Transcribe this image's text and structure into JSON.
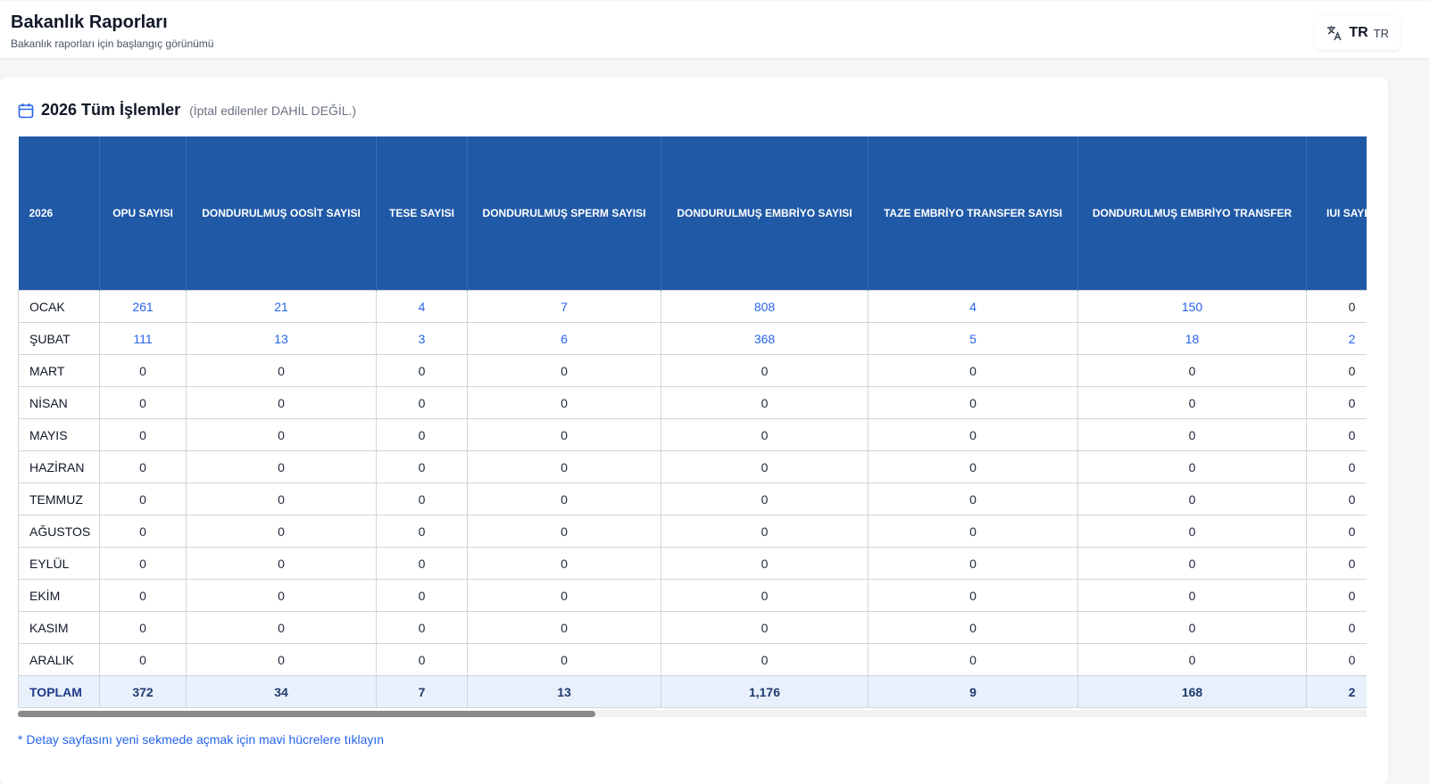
{
  "header": {
    "title": "Bakanlık Raporları",
    "subtitle": "Bakanlık raporları için başlangıç görünümü",
    "language_code": "TR",
    "language_code_small": "TR"
  },
  "card": {
    "title": "2026 Tüm İşlemler",
    "note": "(İptal edilenler DAHİL DEĞİL.)"
  },
  "table": {
    "columns": [
      "2026",
      "OPU SAYISI",
      "DONDURULMUŞ OOSİT SAYISI",
      "TESE SAYISI",
      "DONDURULMUŞ SPERM SAYISI",
      "DONDURULMUŞ EMBRİYO SAYISI",
      "TAZE EMBRİYO TRANSFER SAYISI",
      "DONDURULMUŞ EMBRİYO TRANSFER",
      "IUI SAYISI"
    ],
    "rows": [
      {
        "month": "OCAK",
        "values": [
          "261",
          "21",
          "4",
          "7",
          "808",
          "4",
          "150",
          "0"
        ]
      },
      {
        "month": "ŞUBAT",
        "values": [
          "111",
          "13",
          "3",
          "6",
          "368",
          "5",
          "18",
          "2"
        ]
      },
      {
        "month": "MART",
        "values": [
          "0",
          "0",
          "0",
          "0",
          "0",
          "0",
          "0",
          "0"
        ]
      },
      {
        "month": "NİSAN",
        "values": [
          "0",
          "0",
          "0",
          "0",
          "0",
          "0",
          "0",
          "0"
        ]
      },
      {
        "month": "MAYIS",
        "values": [
          "0",
          "0",
          "0",
          "0",
          "0",
          "0",
          "0",
          "0"
        ]
      },
      {
        "month": "HAZİRAN",
        "values": [
          "0",
          "0",
          "0",
          "0",
          "0",
          "0",
          "0",
          "0"
        ]
      },
      {
        "month": "TEMMUZ",
        "values": [
          "0",
          "0",
          "0",
          "0",
          "0",
          "0",
          "0",
          "0"
        ]
      },
      {
        "month": "AĞUSTOS",
        "values": [
          "0",
          "0",
          "0",
          "0",
          "0",
          "0",
          "0",
          "0"
        ]
      },
      {
        "month": "EYLÜL",
        "values": [
          "0",
          "0",
          "0",
          "0",
          "0",
          "0",
          "0",
          "0"
        ]
      },
      {
        "month": "EKİM",
        "values": [
          "0",
          "0",
          "0",
          "0",
          "0",
          "0",
          "0",
          "0"
        ]
      },
      {
        "month": "KASIM",
        "values": [
          "0",
          "0",
          "0",
          "0",
          "0",
          "0",
          "0",
          "0"
        ]
      },
      {
        "month": "ARALIK",
        "values": [
          "0",
          "0",
          "0",
          "0",
          "0",
          "0",
          "0",
          "0"
        ]
      }
    ],
    "total": {
      "month": "TOPLAM",
      "values": [
        "372",
        "34",
        "7",
        "13",
        "1,176",
        "9",
        "168",
        "2"
      ]
    }
  },
  "footnote": "* Detay sayfasını yeni sekmede açmak için mavi hücrelere tıklayın",
  "colors": {
    "header_blue": "#2059a6",
    "link_blue": "#2563eb",
    "total_row_bg": "#e8f0fb"
  },
  "icons": {
    "language": "translate-icon",
    "card": "calendar-icon"
  }
}
